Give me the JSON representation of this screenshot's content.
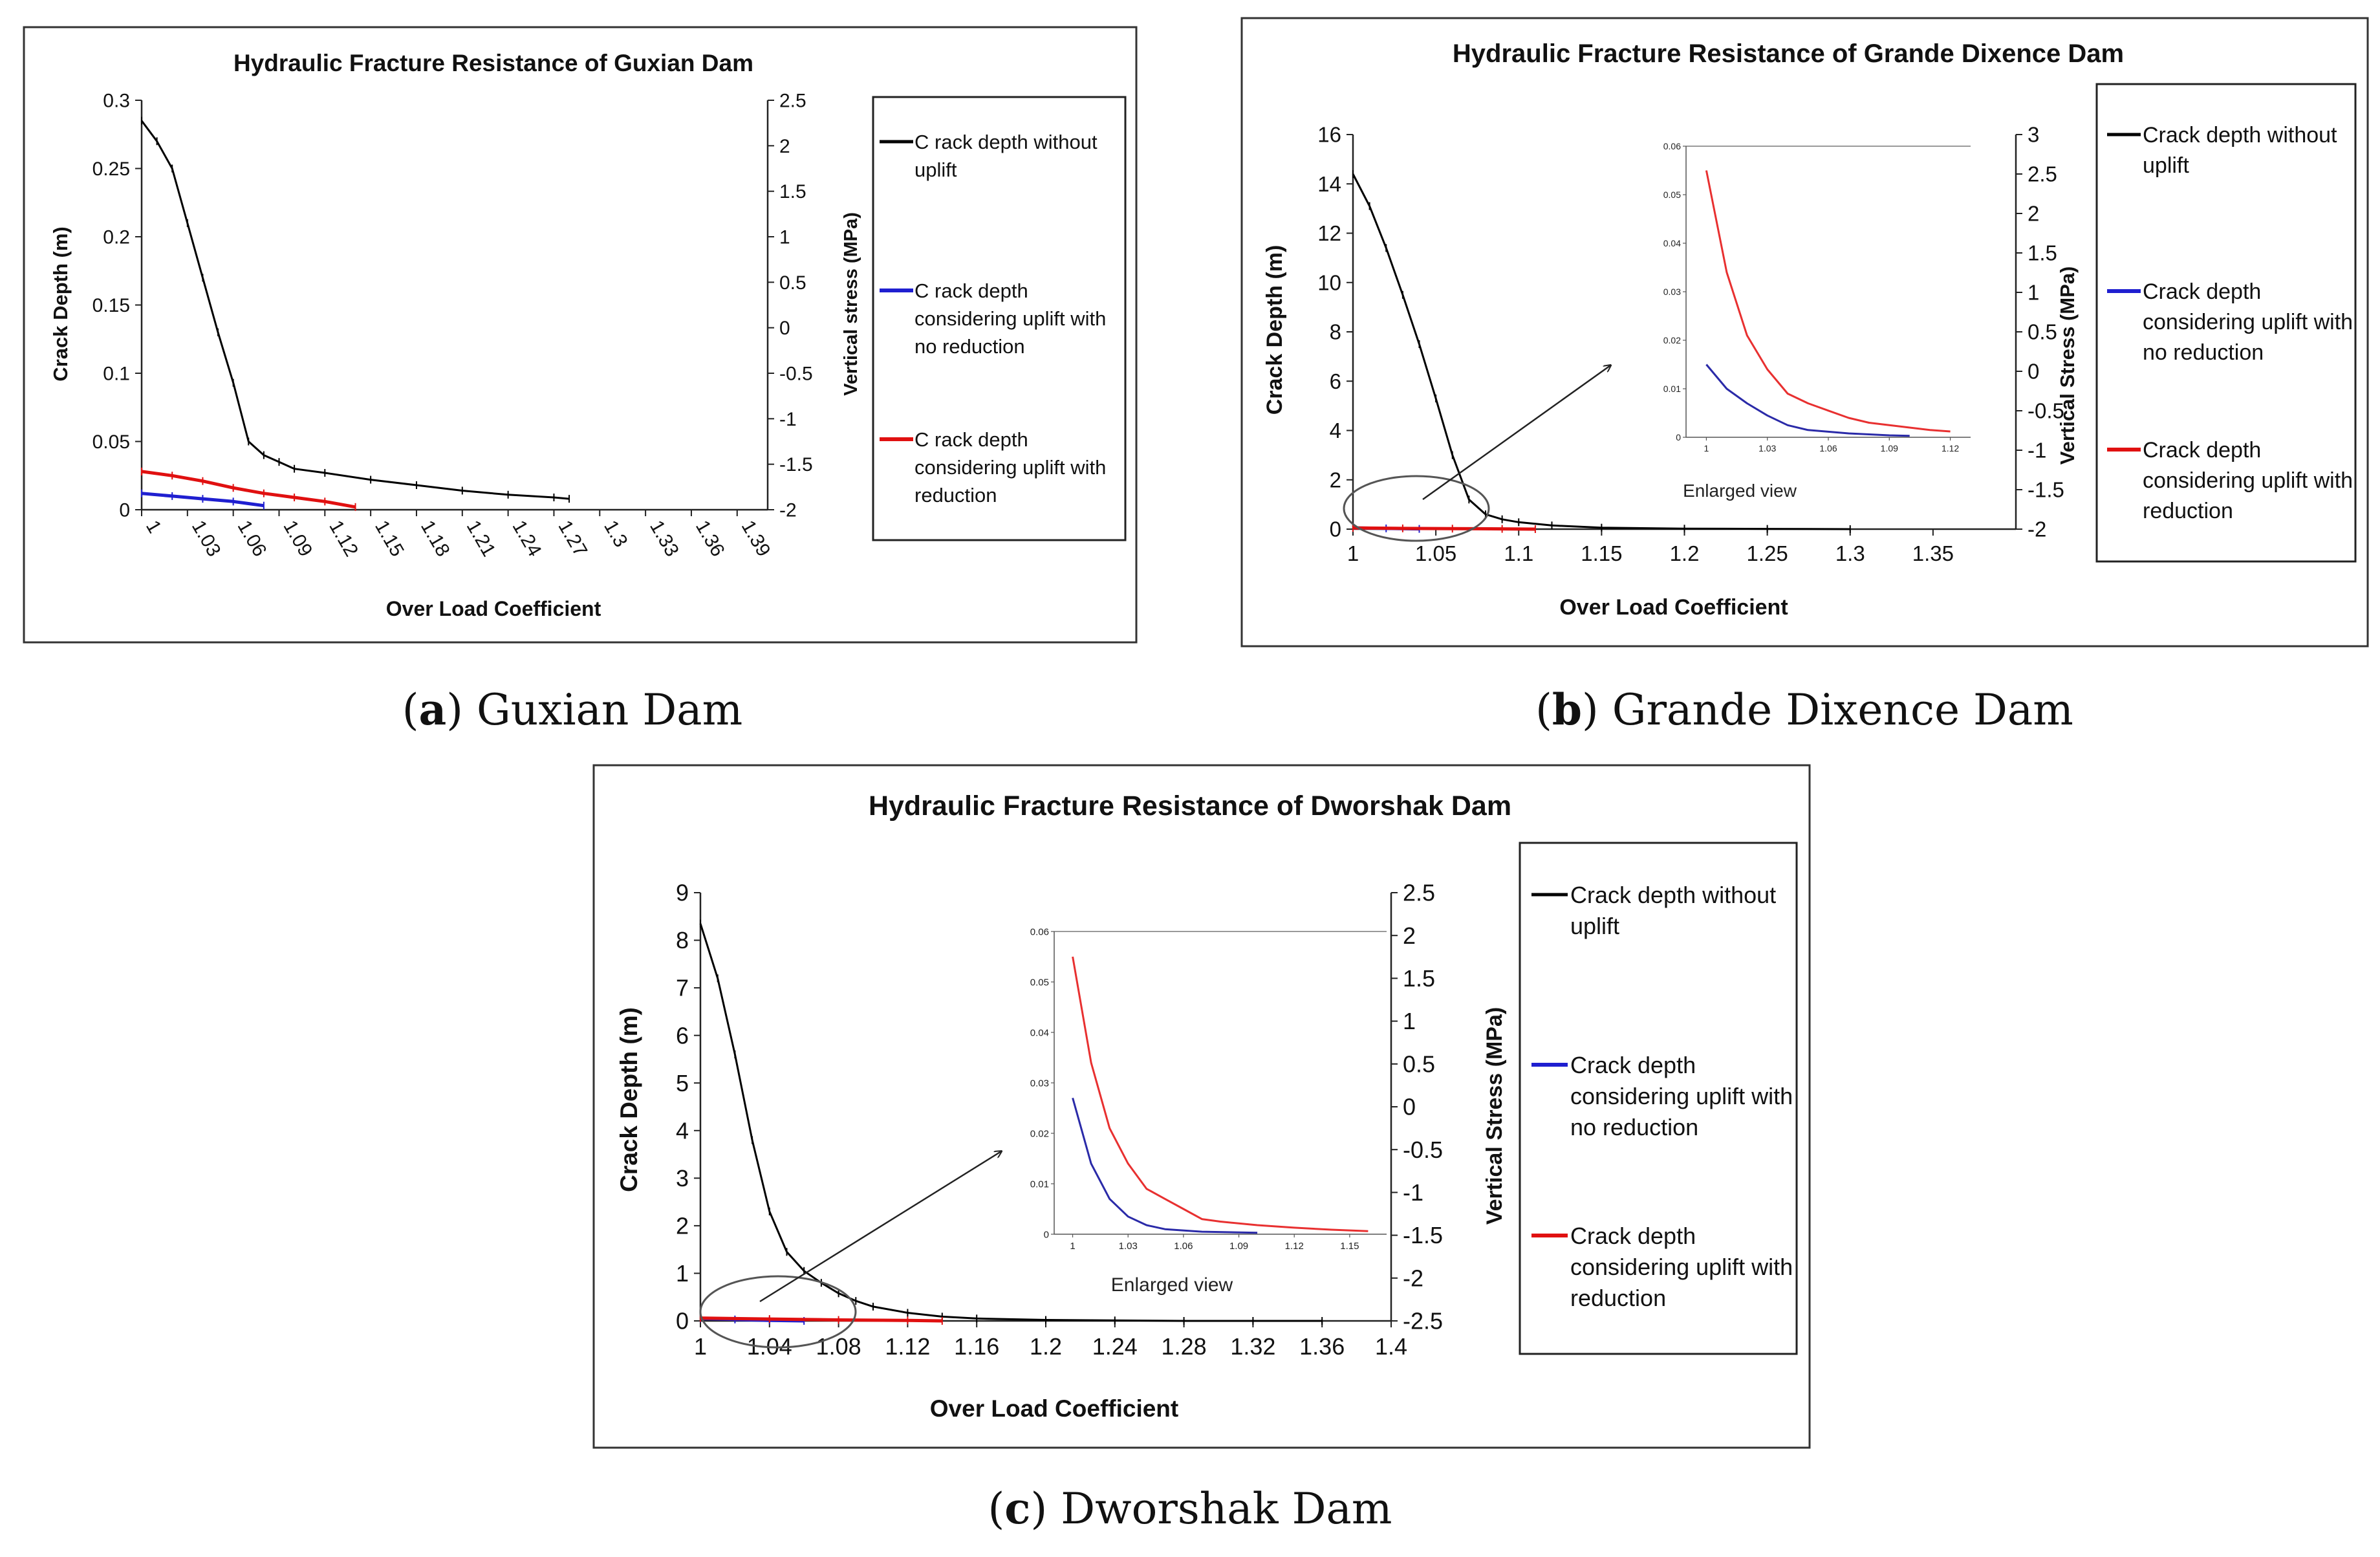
{
  "figure": {
    "captions": [
      {
        "label": "a",
        "open": "(",
        "close": ") Guxian Dam"
      },
      {
        "label": "b",
        "open": "(",
        "close": ") Grande Dixence Dam"
      },
      {
        "label": "c",
        "open": "(",
        "close": ") Dworshak Dam"
      }
    ]
  },
  "chart_data": [
    {
      "id": "a",
      "type": "line",
      "title": "Hydraulic Fracture Resistance of Guxian Dam",
      "xlabel": "Over Load Coefficient",
      "ylabel": "Crack Depth (m)",
      "y2label": "Vertical stress (MPa)",
      "x_categorical": true,
      "xlim": [
        1,
        1.41
      ],
      "xticks": [
        1,
        1.03,
        1.06,
        1.09,
        1.12,
        1.15,
        1.18,
        1.21,
        1.24,
        1.27,
        1.3,
        1.33,
        1.36,
        1.39
      ],
      "xtick_labels": [
        "1",
        "1.03",
        "1.06",
        "1.09",
        "1.12",
        "1.15",
        "1.18",
        "1.21",
        "1.24",
        "1.27",
        "1.3",
        "1.33",
        "1.36",
        "1.39"
      ],
      "ylim": [
        0,
        0.3
      ],
      "yticks": [
        0,
        0.05,
        0.1,
        0.15,
        0.2,
        0.25,
        0.3
      ],
      "ytick_labels": [
        "0",
        "0.05",
        "0.1",
        "0.15",
        "0.2",
        "0.25",
        "0.3"
      ],
      "y2lim": [
        -2,
        2.5
      ],
      "y2ticks": [
        -2,
        -1.5,
        -1,
        -0.5,
        0,
        0.5,
        1,
        1.5,
        2,
        2.5
      ],
      "y2tick_labels": [
        "-2",
        "-1.5",
        "-1",
        "-0.5",
        "0",
        "0.5",
        "1",
        "1.5",
        "2",
        "2.5"
      ],
      "series": [
        {
          "name": "Crack depth without uplift",
          "color": "#000000",
          "x": [
            1,
            1.01,
            1.02,
            1.03,
            1.04,
            1.05,
            1.06,
            1.07,
            1.08,
            1.09,
            1.1,
            1.12,
            1.15,
            1.18,
            1.21,
            1.24,
            1.27,
            1.28
          ],
          "y": [
            0.285,
            0.27,
            0.25,
            0.21,
            0.17,
            0.13,
            0.093,
            0.05,
            0.04,
            0.035,
            0.03,
            0.027,
            0.022,
            0.018,
            0.014,
            0.011,
            0.009,
            0.008
          ]
        },
        {
          "name": "Crack depth considering uplift with no reduction",
          "color": "#1f1fd0",
          "x": [
            1,
            1.02,
            1.04,
            1.06,
            1.08
          ],
          "y": [
            0.012,
            0.01,
            0.008,
            0.006,
            0.003
          ]
        },
        {
          "name": "Crack depth considering uplift with reduction",
          "color": "#e01010",
          "x": [
            1,
            1.02,
            1.04,
            1.06,
            1.08,
            1.1,
            1.12,
            1.14
          ],
          "y": [
            0.028,
            0.025,
            0.021,
            0.016,
            0.012,
            0.009,
            0.006,
            0.002
          ]
        }
      ],
      "legend": {
        "labels": [
          "C rack depth without uplift",
          "C rack depth considering uplift with no reduction",
          "C rack depth considering uplift with reduction"
        ]
      }
    },
    {
      "id": "b",
      "type": "line",
      "title": "Hydraulic Fracture Resistance of Grande Dixence Dam",
      "xlabel": "Over Load Coefficient",
      "ylabel": "Crack Depth (m)",
      "y2label": "Vertical Stress (MPa)",
      "xlim": [
        1,
        1.4
      ],
      "xticks": [
        1,
        1.05,
        1.1,
        1.15,
        1.2,
        1.25,
        1.3,
        1.35
      ],
      "xtick_labels": [
        "1",
        "1.05",
        "1.1",
        "1.15",
        "1.2",
        "1.25",
        "1.3",
        "1.35"
      ],
      "ylim": [
        0,
        16
      ],
      "yticks": [
        0,
        2,
        4,
        6,
        8,
        10,
        12,
        14,
        16
      ],
      "ytick_labels": [
        "0",
        "2",
        "4",
        "6",
        "8",
        "10",
        "12",
        "14",
        "16"
      ],
      "y2lim": [
        -2,
        3
      ],
      "y2ticks": [
        -2,
        -1.5,
        -1,
        -0.5,
        0,
        0.5,
        1,
        1.5,
        2,
        2.5,
        3
      ],
      "y2tick_labels": [
        "-2",
        "-1.5",
        "-1",
        "-0.5",
        "0",
        "0.5",
        "1",
        "1.5",
        "2",
        "2.5",
        "3"
      ],
      "series": [
        {
          "name": "Crack depth without uplift",
          "color": "#000000",
          "x": [
            1,
            1.01,
            1.02,
            1.03,
            1.04,
            1.05,
            1.06,
            1.07,
            1.08,
            1.09,
            1.1,
            1.12,
            1.15,
            1.2,
            1.25,
            1.3
          ],
          "y": [
            14.4,
            13.1,
            11.4,
            9.5,
            7.5,
            5.3,
            3.0,
            1.2,
            0.6,
            0.4,
            0.28,
            0.15,
            0.06,
            0.02,
            0.01,
            0.0
          ]
        },
        {
          "name": "Crack depth considering uplift with no reduction",
          "color": "#1f1fd0",
          "x": [
            1,
            1.02,
            1.04
          ],
          "y": [
            0.05,
            0.03,
            0.01
          ]
        },
        {
          "name": "Crack depth considering uplift with reduction",
          "color": "#e01010",
          "x": [
            1,
            1.03,
            1.06,
            1.09,
            1.11
          ],
          "y": [
            0.05,
            0.03,
            0.02,
            0.01,
            0.0
          ]
        }
      ],
      "inset": {
        "label": "Enlarged view",
        "xlim": [
          0.99,
          1.13
        ],
        "xticks": [
          1,
          1.03,
          1.06,
          1.09,
          1.12
        ],
        "xtick_labels": [
          "1",
          "1.03",
          "1.06",
          "1.09",
          "1.12"
        ],
        "ylim": [
          0,
          0.06
        ],
        "yticks": [
          0,
          0.01,
          0.02,
          0.03,
          0.04,
          0.05,
          0.06
        ],
        "ytick_labels": [
          "0",
          "0.01",
          "0.02",
          "0.03",
          "0.04",
          "0.05",
          "0.06"
        ],
        "series": [
          {
            "name": "with reduction",
            "color": "#e83030",
            "x": [
              1,
              1.01,
              1.02,
              1.03,
              1.04,
              1.05,
              1.06,
              1.07,
              1.08,
              1.09,
              1.1,
              1.11,
              1.12
            ],
            "y": [
              0.055,
              0.034,
              0.021,
              0.014,
              0.009,
              0.007,
              0.0055,
              0.004,
              0.003,
              0.0025,
              0.002,
              0.0015,
              0.0012
            ]
          },
          {
            "name": "no reduction",
            "color": "#2a2aa8",
            "x": [
              1,
              1.01,
              1.02,
              1.03,
              1.04,
              1.05,
              1.07,
              1.09,
              1.1
            ],
            "y": [
              0.015,
              0.01,
              0.007,
              0.0045,
              0.0025,
              0.0015,
              0.0008,
              0.0004,
              0.0003
            ]
          }
        ]
      },
      "legend": {
        "labels": [
          "Crack depth without uplift",
          "Crack depth considering uplift with no reduction",
          "Crack depth considering uplift with reduction"
        ]
      }
    },
    {
      "id": "c",
      "type": "line",
      "title": "Hydraulic Fracture Resistance of Dworshak Dam",
      "xlabel": "Over Load Coefficient",
      "ylabel": "Crack Depth (m)",
      "y2label": "Vertical Stress (MPa)",
      "xlim": [
        1,
        1.4
      ],
      "xticks": [
        1,
        1.04,
        1.08,
        1.12,
        1.16,
        1.2,
        1.24,
        1.28,
        1.32,
        1.36,
        1.4
      ],
      "xtick_labels": [
        "1",
        "1.04",
        "1.08",
        "1.12",
        "1.16",
        "1.2",
        "1.24",
        "1.28",
        "1.32",
        "1.36",
        "1.4"
      ],
      "ylim": [
        0,
        9
      ],
      "yticks": [
        0,
        1,
        2,
        3,
        4,
        5,
        6,
        7,
        8,
        9
      ],
      "ytick_labels": [
        "0",
        "1",
        "2",
        "3",
        "4",
        "5",
        "6",
        "7",
        "8",
        "9"
      ],
      "y2lim": [
        -2.5,
        2.5
      ],
      "y2ticks": [
        -2.5,
        -2,
        -1.5,
        -1,
        -0.5,
        0,
        0.5,
        1,
        1.5,
        2,
        2.5
      ],
      "y2tick_labels": [
        "-2.5",
        "-2",
        "-1.5",
        "-1",
        "-0.5",
        "0",
        "0.5",
        "1",
        "1.5",
        "2",
        "2.5"
      ],
      "series": [
        {
          "name": "Crack depth without uplift",
          "color": "#000000",
          "x": [
            1,
            1.01,
            1.02,
            1.03,
            1.04,
            1.05,
            1.06,
            1.07,
            1.08,
            1.09,
            1.1,
            1.12,
            1.14,
            1.16,
            1.2,
            1.24,
            1.28,
            1.32,
            1.36
          ],
          "y": [
            8.35,
            7.2,
            5.6,
            3.8,
            2.3,
            1.45,
            1.05,
            0.8,
            0.58,
            0.42,
            0.3,
            0.17,
            0.09,
            0.05,
            0.02,
            0.01,
            0.0,
            0.0,
            0.0
          ]
        },
        {
          "name": "Crack depth considering uplift with no reduction",
          "color": "#1f1fd0",
          "x": [
            1,
            1.02,
            1.04,
            1.06
          ],
          "y": [
            0.05,
            0.03,
            0.01,
            0.0
          ]
        },
        {
          "name": "Crack depth considering uplift with reduction",
          "color": "#e01010",
          "x": [
            1,
            1.04,
            1.08,
            1.12,
            1.14
          ],
          "y": [
            0.06,
            0.04,
            0.02,
            0.01,
            0.0
          ]
        }
      ],
      "inset": {
        "label": "Enlarged view",
        "xlim": [
          0.99,
          1.17
        ],
        "xticks": [
          1,
          1.03,
          1.06,
          1.09,
          1.12,
          1.15
        ],
        "xtick_labels": [
          "1",
          "1.03",
          "1.06",
          "1.09",
          "1.12",
          "1.15"
        ],
        "ylim": [
          0,
          0.06
        ],
        "yticks": [
          0,
          0.01,
          0.02,
          0.03,
          0.04,
          0.05,
          0.06
        ],
        "ytick_labels": [
          "0",
          "0.01",
          "0.02",
          "0.03",
          "0.04",
          "0.05",
          "0.06"
        ],
        "series": [
          {
            "name": "with reduction",
            "color": "#e83030",
            "x": [
              1,
              1.01,
              1.02,
              1.03,
              1.04,
              1.05,
              1.06,
              1.07,
              1.08,
              1.1,
              1.12,
              1.14,
              1.16
            ],
            "y": [
              0.055,
              0.034,
              0.021,
              0.014,
              0.009,
              0.007,
              0.005,
              0.003,
              0.0025,
              0.0018,
              0.0013,
              0.0009,
              0.0006
            ]
          },
          {
            "name": "no reduction",
            "color": "#2a2aa8",
            "x": [
              1,
              1.01,
              1.02,
              1.03,
              1.04,
              1.05,
              1.07,
              1.1
            ],
            "y": [
              0.027,
              0.014,
              0.007,
              0.0035,
              0.0018,
              0.001,
              0.0005,
              0.0003
            ]
          }
        ]
      },
      "legend": {
        "labels": [
          "Crack depth without uplift",
          "Crack depth considering uplift with no reduction",
          "Crack depth considering uplift with reduction"
        ]
      }
    }
  ]
}
